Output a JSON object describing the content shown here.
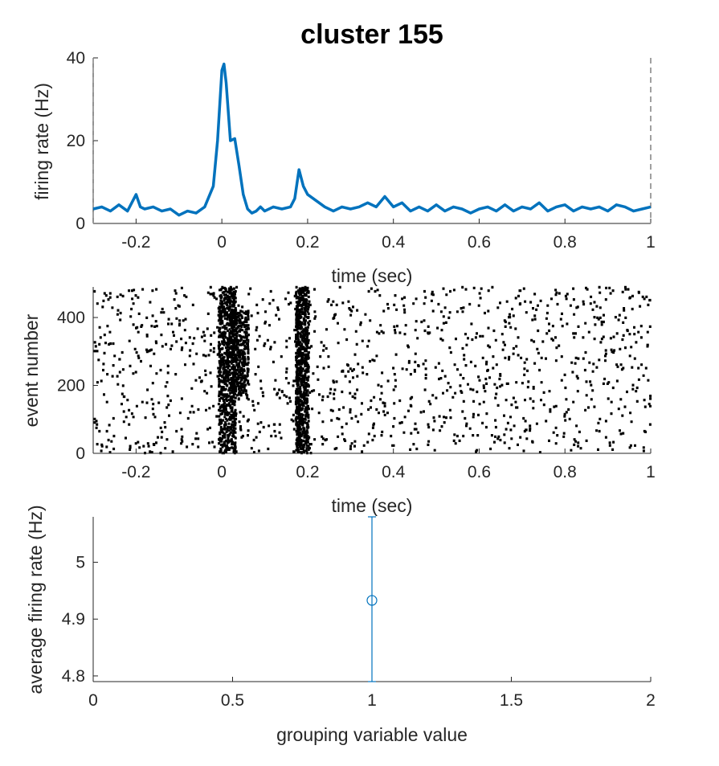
{
  "title": "cluster 155",
  "colors": {
    "line": "#0072BD",
    "raster": "#000000",
    "errorbar": "#0072BD",
    "axes": "#262626",
    "marker": "#0072BD"
  },
  "chart_data": [
    {
      "type": "line",
      "name": "psth",
      "xlabel": "time (sec)",
      "ylabel": "firing rate (Hz)",
      "xlim": [
        -0.3,
        1
      ],
      "ylim": [
        0,
        40
      ],
      "xticks": [
        -0.2,
        0,
        0.2,
        0.4,
        0.6,
        0.8,
        1
      ],
      "xtick_labels": [
        "-0.2",
        "0",
        "0.2",
        "0.4",
        "0.6",
        "0.8",
        "1"
      ],
      "yticks": [
        0,
        20,
        40
      ],
      "ytick_labels": [
        "0",
        "20",
        "40"
      ],
      "vlines": [
        -0.3,
        1
      ],
      "series": [
        {
          "x": [
            -0.3,
            -0.28,
            -0.26,
            -0.24,
            -0.22,
            -0.2,
            -0.19,
            -0.18,
            -0.16,
            -0.14,
            -0.12,
            -0.1,
            -0.08,
            -0.06,
            -0.04,
            -0.02,
            -0.01,
            0.0,
            0.005,
            0.01,
            0.02,
            0.03,
            0.04,
            0.05,
            0.06,
            0.07,
            0.08,
            0.09,
            0.1,
            0.12,
            0.14,
            0.16,
            0.17,
            0.18,
            0.19,
            0.2,
            0.22,
            0.24,
            0.26,
            0.28,
            0.3,
            0.32,
            0.34,
            0.36,
            0.38,
            0.4,
            0.42,
            0.44,
            0.46,
            0.48,
            0.5,
            0.52,
            0.54,
            0.56,
            0.58,
            0.6,
            0.62,
            0.64,
            0.66,
            0.68,
            0.7,
            0.72,
            0.74,
            0.76,
            0.78,
            0.8,
            0.82,
            0.84,
            0.86,
            0.88,
            0.9,
            0.92,
            0.94,
            0.96,
            0.98,
            1.0
          ],
          "y": [
            3.5,
            4,
            3,
            4.5,
            3,
            7,
            4,
            3.5,
            4,
            3,
            3.5,
            2,
            3,
            2.5,
            4,
            9,
            20,
            37,
            38.5,
            34,
            20,
            20.5,
            14,
            7,
            3.5,
            2.5,
            3,
            4,
            3,
            4,
            3.5,
            4,
            6,
            13,
            9,
            7,
            5.5,
            4,
            3,
            4,
            3.5,
            4,
            5,
            4,
            6.5,
            4,
            5,
            3,
            4,
            3,
            4.5,
            3,
            4,
            3.5,
            2.5,
            3.5,
            4,
            3,
            4.5,
            3,
            4,
            3.5,
            5,
            3,
            4,
            4.5,
            3,
            4,
            3.5,
            4,
            3,
            4.5,
            4,
            3,
            3.5,
            4
          ]
        }
      ]
    },
    {
      "type": "raster",
      "name": "raster",
      "xlabel": "time (sec)",
      "ylabel": "event number",
      "xlim": [
        -0.3,
        1
      ],
      "ylim": [
        0,
        490
      ],
      "xticks": [
        -0.2,
        0,
        0.2,
        0.4,
        0.6,
        0.8,
        1
      ],
      "xtick_labels": [
        "-0.2",
        "0",
        "0.2",
        "0.4",
        "0.6",
        "0.8",
        "1"
      ],
      "yticks": [
        0,
        200,
        400
      ],
      "ytick_labels": [
        "0",
        "200",
        "400"
      ],
      "n_events": 490,
      "baseline_rate_hz": 4,
      "burst_features": [
        {
          "t_start": -0.01,
          "t_end": 0.03,
          "events": [
            0,
            490
          ]
        },
        {
          "t_start": 0.02,
          "t_end": 0.06,
          "events": [
            170,
            420
          ]
        },
        {
          "t_start": 0.17,
          "t_end": 0.2,
          "events": [
            0,
            490
          ]
        }
      ]
    },
    {
      "type": "errorbar",
      "name": "tuning",
      "xlabel": "grouping variable value",
      "ylabel": "average firing rate (Hz)",
      "xlim": [
        0,
        2
      ],
      "ylim": [
        4.79,
        5.08
      ],
      "xticks": [
        0,
        0.5,
        1,
        1.5,
        2
      ],
      "xtick_labels": [
        "0",
        "0.5",
        "1",
        "1.5",
        "2"
      ],
      "yticks": [
        4.8,
        4.9,
        5
      ],
      "ytick_labels": [
        "4.8",
        "4.9",
        "5"
      ],
      "points": [
        {
          "x": 1,
          "y": 4.933,
          "lower": 4.79,
          "upper": 5.08
        }
      ]
    }
  ]
}
